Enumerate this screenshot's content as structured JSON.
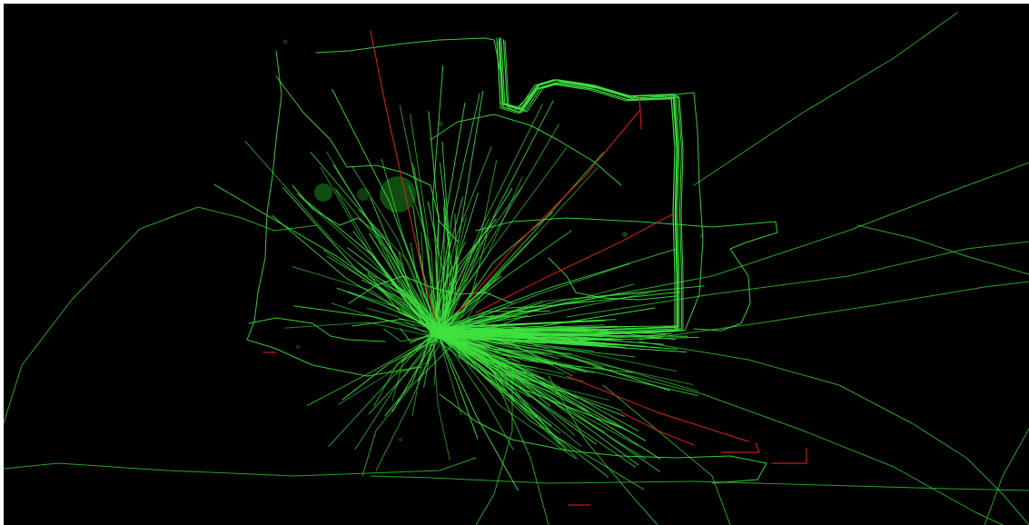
{
  "view": {
    "background_color": "#000000",
    "frame_color": "#ffffff"
  },
  "palette": {
    "track_color": "#3ee03e",
    "track_color_dim": "#2fbf2f",
    "highlight_color": "#d42020",
    "marker_color": "#1e8a1e"
  }
}
